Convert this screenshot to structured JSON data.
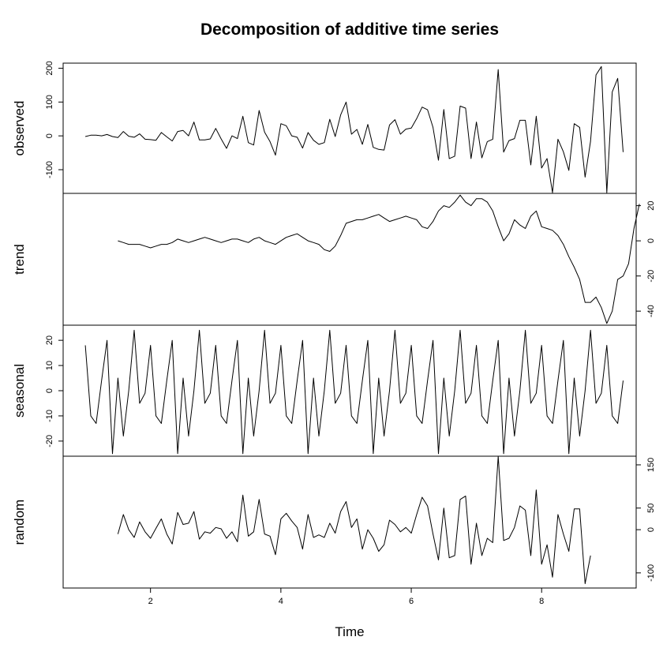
{
  "chart_data": {
    "type": "line",
    "title": "Decomposition of additive time series",
    "xlabel": "Time",
    "xlim": [
      0.66,
      9.45
    ],
    "x_ticks": [
      2,
      4,
      6,
      8
    ],
    "x_start": 1,
    "x_step": 0.0833333,
    "grid": false,
    "legend": "none",
    "colors": {
      "line": "#000000",
      "axis": "#000000",
      "background": "#ffffff"
    },
    "panels": [
      {
        "name": "observed",
        "ylabel": "observed",
        "ylim": [
          -170,
          215
        ],
        "y_ticks": [
          -100,
          0,
          100,
          200
        ],
        "x_start": 1,
        "values": [
          -2,
          2,
          2,
          0,
          4,
          -2,
          -5,
          13,
          -1,
          -4,
          6,
          -10,
          -11,
          -13,
          10,
          -3,
          -15,
          13,
          16,
          0,
          41,
          -12,
          -12,
          -9,
          22,
          -9,
          -37,
          0,
          -8,
          58,
          -20,
          -27,
          75,
          11,
          -17,
          -57,
          36,
          30,
          0,
          -4,
          -36,
          10,
          -13,
          -25,
          -20,
          49,
          -2,
          62,
          100,
          5,
          19,
          -25,
          34,
          -34,
          -40,
          -42,
          32,
          48,
          5,
          20,
          23,
          51,
          85,
          77,
          25,
          -72,
          78,
          -67,
          -60,
          88,
          82,
          -67,
          41,
          -65,
          -17,
          -10,
          196,
          -48,
          -14,
          -8,
          46,
          46,
          -86,
          58,
          -95,
          -67,
          -168,
          -10,
          -47,
          -102,
          36,
          25,
          -122,
          -16,
          180,
          205,
          -168,
          130,
          170,
          -48
        ]
      },
      {
        "name": "trend",
        "ylabel": "trend",
        "ylim": [
          -48,
          27
        ],
        "y_ticks": [
          -40,
          -20,
          0,
          20
        ],
        "x_start": 1.5,
        "values": [
          0,
          -1,
          -2,
          -2,
          -2,
          -3,
          -4,
          -3,
          -2,
          -2,
          -1,
          1,
          0,
          -1,
          0,
          1,
          2,
          1,
          0,
          -1,
          0,
          1,
          1,
          0,
          -1,
          1,
          2,
          0,
          -1,
          -2,
          0,
          2,
          3,
          4,
          2,
          0,
          -1,
          -2,
          -5,
          -6,
          -3,
          3,
          10,
          11,
          12,
          12,
          13,
          14,
          15,
          13,
          11,
          12,
          13,
          14,
          13,
          12,
          8,
          7,
          11,
          17,
          20,
          19,
          22,
          26,
          22,
          20,
          24,
          24,
          22,
          17,
          8,
          0,
          4,
          12,
          9,
          7,
          14,
          17,
          8,
          7,
          6,
          3,
          -2,
          -9,
          -15,
          -22,
          -35,
          -35,
          -32,
          -38,
          -47,
          -40,
          -22,
          -20,
          -13,
          7,
          21
        ]
      },
      {
        "name": "seasonal",
        "ylabel": "seasonal",
        "ylim": [
          -26,
          26
        ],
        "y_ticks": [
          -20,
          -10,
          0,
          10,
          20
        ],
        "x_start": 1,
        "values": [
          18,
          -10,
          -13,
          4,
          20,
          -25,
          5,
          -18,
          0,
          24,
          -5,
          -1,
          18,
          -10,
          -13,
          4,
          20,
          -25,
          5,
          -18,
          0,
          24,
          -5,
          -1,
          18,
          -10,
          -13,
          4,
          20,
          -25,
          5,
          -18,
          0,
          24,
          -5,
          -1,
          18,
          -10,
          -13,
          4,
          20,
          -25,
          5,
          -18,
          0,
          24,
          -5,
          -1,
          18,
          -10,
          -13,
          4,
          20,
          -25,
          5,
          -18,
          0,
          24,
          -5,
          -1,
          18,
          -10,
          -13,
          4,
          20,
          -25,
          5,
          -18,
          0,
          24,
          -5,
          -1,
          18,
          -10,
          -13,
          4,
          20,
          -25,
          5,
          -18,
          0,
          24,
          -5,
          -1,
          18,
          -10,
          -13,
          4,
          20,
          -25,
          5,
          -18,
          0,
          24,
          -5,
          -1,
          18,
          -10,
          -13,
          4
        ]
      },
      {
        "name": "random",
        "ylabel": "random",
        "ylim": [
          -135,
          170
        ],
        "y_ticks": [
          -100,
          0,
          50,
          150
        ],
        "y_tick_labels": [
          "-100",
          "0",
          "50",
          "150"
        ],
        "x_start": 1.5,
        "values": [
          -10,
          35,
          0,
          -18,
          18,
          -5,
          -20,
          3,
          25,
          -10,
          -33,
          40,
          12,
          15,
          42,
          -22,
          -5,
          -8,
          5,
          2,
          -20,
          -5,
          -28,
          80,
          -15,
          -5,
          70,
          -10,
          -15,
          -58,
          25,
          38,
          20,
          5,
          -45,
          35,
          -18,
          -12,
          -18,
          15,
          -8,
          42,
          65,
          5,
          25,
          -45,
          0,
          -20,
          -50,
          -35,
          22,
          12,
          -5,
          5,
          -8,
          35,
          75,
          55,
          -10,
          -70,
          50,
          -65,
          -60,
          70,
          78,
          -80,
          15,
          -60,
          -20,
          -30,
          170,
          -25,
          -20,
          5,
          55,
          45,
          -60,
          92,
          -80,
          -35,
          -110,
          35,
          -10,
          -50,
          48,
          48,
          -125,
          -60
        ]
      }
    ]
  }
}
